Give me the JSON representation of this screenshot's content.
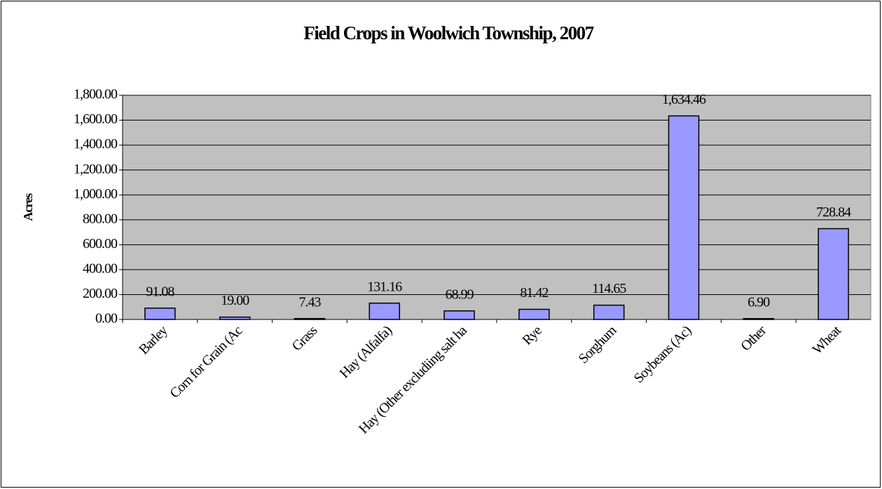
{
  "chart_data": {
    "type": "bar",
    "title": "Field Crops in Woolwich Township, 2007",
    "y_label": "Acres",
    "categories": [
      "Barley",
      "Corn for Grain (Ac",
      "Grass",
      "Hay (Alfalfa)",
      "Hay (Other excludiing salt ha",
      "Rye",
      "Sorghum",
      "Soybeans (Ac)",
      "Other",
      "Wheat"
    ],
    "values": [
      91.08,
      19.0,
      7.43,
      131.16,
      68.99,
      81.42,
      114.65,
      1634.46,
      6.9,
      728.84
    ],
    "value_labels": [
      "91.08",
      "19.00",
      "7.43",
      "131.16",
      "68.99",
      "81.42",
      "114.65",
      "1,634.46",
      "6.90",
      "728.84"
    ],
    "color": "#9999ff",
    "plot_background": "#c0c0c0",
    "ylim": [
      0,
      1800
    ],
    "yticks": [
      {
        "value": 0,
        "label": "0.00"
      },
      {
        "value": 200,
        "label": "200.00"
      },
      {
        "value": 400,
        "label": "400.00"
      },
      {
        "value": 600,
        "label": "600.00"
      },
      {
        "value": 800,
        "label": "800.00"
      },
      {
        "value": 1000,
        "label": "1,000.00"
      },
      {
        "value": 1200,
        "label": "1,200.00"
      },
      {
        "value": 1400,
        "label": "1,400.00"
      },
      {
        "value": 1600,
        "label": "1,600.00"
      },
      {
        "value": 1800,
        "label": "1,800.00"
      }
    ],
    "grid": true
  }
}
